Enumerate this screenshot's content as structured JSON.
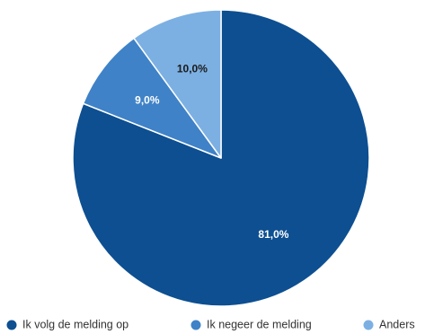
{
  "chart_data": {
    "type": "pie",
    "labels": [
      "Ik volg de melding op",
      "Ik negeer de melding",
      "Anders"
    ],
    "values": [
      81.0,
      9.0,
      10.0
    ],
    "data_labels": [
      "81,0%",
      "9,0%",
      "10,0%"
    ],
    "colors": [
      "#0d4f91",
      "#3f82c7",
      "#7cb0e3"
    ],
    "label_colors": [
      "#ffffff",
      "#ffffff",
      "#1a1a1a"
    ],
    "start_angle": "12 o'clock",
    "direction": "clockwise",
    "legend_position": "bottom"
  }
}
